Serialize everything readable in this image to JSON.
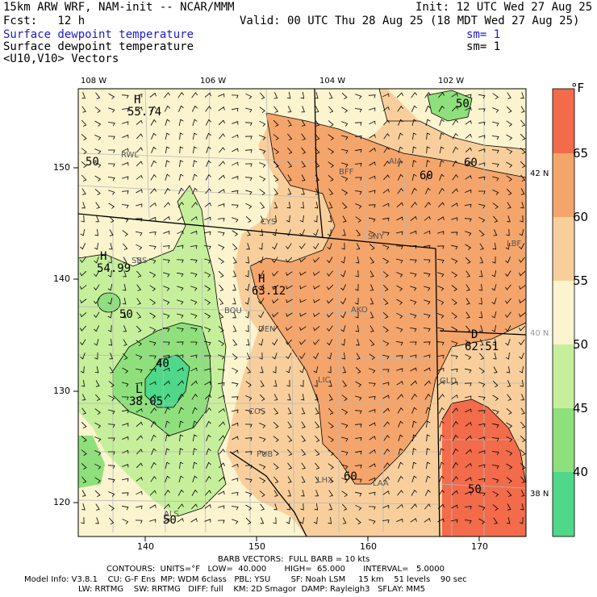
{
  "header": {
    "model_line": "15km ARW WRF, NAM-init -- NCAR/MMM",
    "init_line": "Init: 12 UTC Wed 27 Aug 25",
    "fcst_line": "Fcst:   12 h",
    "valid_line": "Valid: 00 UTC Thu 28 Aug 25 (18 MDT Wed 27 Aug 25)",
    "field1": "Surface dewpoint temperature",
    "field1_sm": "sm= 1",
    "field2": "Surface dewpoint temperature",
    "field2_sm": "sm= 1",
    "field3": "<U10,V10> Vectors"
  },
  "map": {
    "lon_labels": [
      "108 W",
      "106 W",
      "104 W",
      "102 W"
    ],
    "lat_labels": [
      "42 N",
      "40 N",
      "38 N"
    ],
    "x_ticks": [
      "140",
      "150",
      "160",
      "170"
    ],
    "y_ticks": [
      "150",
      "140",
      "130",
      "120"
    ],
    "stations": [
      "RWL",
      "CYS",
      "BFF",
      "AIA",
      "SNY",
      "SBS",
      "BOU",
      "DEN",
      "AKO",
      "LIC",
      "GLD",
      "COS",
      "PUB",
      "LHX",
      "LAA",
      "ALS",
      "LBF"
    ],
    "extrema": [
      {
        "label": "H",
        "value": "55.74"
      },
      {
        "label": "H",
        "value": "54.99"
      },
      {
        "label": "H",
        "value": "63.12"
      },
      {
        "label": "L",
        "value": "38.05"
      },
      {
        "label": "D",
        "value": "62.51"
      }
    ],
    "contour_labels": [
      "50",
      "50",
      "60",
      "60",
      "50",
      "40",
      "60",
      "50",
      "50"
    ]
  },
  "colorbar": {
    "unit": "°F",
    "levels": [
      "65",
      "60",
      "55",
      "50",
      "45",
      "40"
    ],
    "colors": [
      "#f26b4a",
      "#f4a56b",
      "#f8cf9c",
      "#fbf4cf",
      "#c6ef9c",
      "#8fe07c",
      "#4fd889"
    ]
  },
  "footer": {
    "barb": "BARB VECTORS:  FULL BARB = 10 kts",
    "contours": "CONTOURS:  UNITS=°F   LOW=  40.000       HIGH=  65.000       INTERVAL=   5.0000",
    "model_info": "Model Info: V3.8.1    CU: G-F Ens  MP: WDM 6class   PBL: YSU        SF: Noah LSM     15 km    51 levels    90 sec",
    "physics": "LW: RRTMG    SW: RRTMG   DIFF: full    KM: 2D Smagor  DAMP: Rayleigh3   SFLAY: MM5"
  }
}
